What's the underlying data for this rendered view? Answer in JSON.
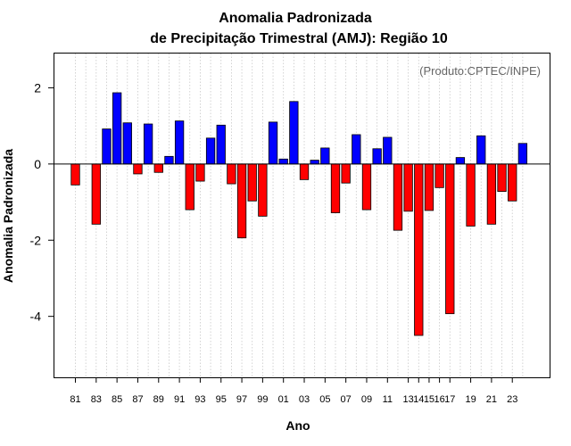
{
  "chart_data": {
    "type": "bar",
    "title": "Anomalia Padronizada",
    "subtitle": "de Precipitação Trimestral (AMJ): Região 10",
    "xlabel": "Ano",
    "ylabel": "Anomalia Padronizada",
    "annotation": "(Produto:CPTEC/INPE)",
    "ylim": [
      -5.6,
      2.9
    ],
    "yticks": [
      2,
      0,
      -2,
      -4
    ],
    "ytick_labels": [
      "2",
      "0",
      "-2",
      "-4"
    ],
    "grid": "vertical dotted",
    "positive_color": "#0000ff",
    "negative_color": "#ff0000",
    "categories": [
      "81",
      "82",
      "83",
      "84",
      "85",
      "86",
      "87",
      "88",
      "89",
      "90",
      "91",
      "92",
      "93",
      "94",
      "95",
      "96",
      "97",
      "98",
      "99",
      "00",
      "01",
      "02",
      "03",
      "04",
      "05",
      "06",
      "07",
      "08",
      "09",
      "10",
      "11",
      "12",
      "13",
      "14",
      "15",
      "16",
      "17",
      "18",
      "19",
      "20",
      "21",
      "22",
      "23",
      "24"
    ],
    "values": [
      -0.55,
      0.0,
      -1.58,
      0.92,
      1.87,
      1.08,
      -0.26,
      1.05,
      -0.22,
      0.2,
      1.13,
      -1.2,
      -0.45,
      0.68,
      1.02,
      -0.52,
      -1.94,
      -0.97,
      -1.37,
      1.1,
      0.13,
      1.64,
      -0.41,
      0.1,
      0.42,
      -1.28,
      -0.5,
      0.77,
      -1.2,
      0.4,
      0.7,
      -1.74,
      -1.24,
      -4.5,
      -1.22,
      -0.62,
      -3.93,
      0.17,
      -1.63,
      0.74,
      -1.58,
      -0.72,
      -0.97,
      0.54
    ],
    "xtick_labels": [
      "81",
      "83",
      "85",
      "87",
      "89",
      "91",
      "93",
      "95",
      "97",
      "99",
      "01",
      "03",
      "05",
      "07",
      "09",
      "11",
      "13",
      "14",
      "15",
      "16",
      "17",
      "19",
      "21",
      "23"
    ]
  }
}
